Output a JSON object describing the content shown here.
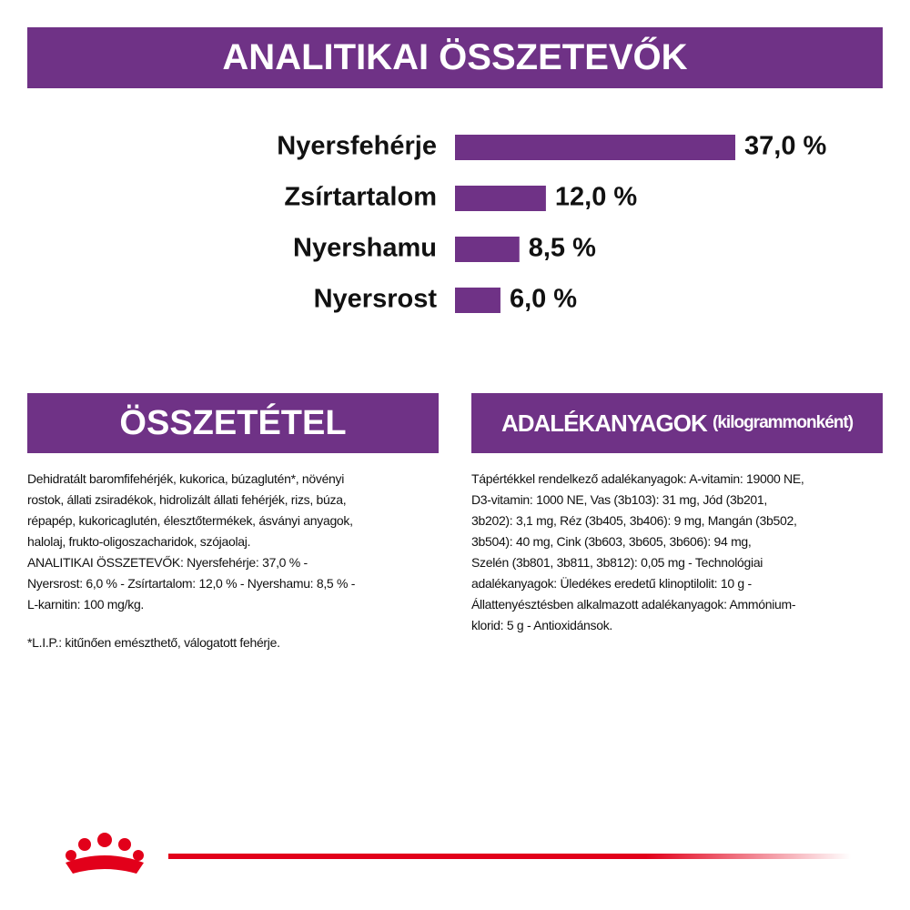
{
  "header": {
    "title": "ANALITIKAI ÖSSZETEVŐK"
  },
  "chart_data": {
    "type": "bar",
    "orientation": "horizontal",
    "color": "#6f3286",
    "categories": [
      "Nyersfehérje",
      "Zsírtartalom",
      "Nyershamu",
      "Nyersrost"
    ],
    "values": [
      37,
      12,
      8.5,
      6
    ],
    "value_labels": [
      "37,0 %",
      "12,0 %",
      "8,5 %",
      "6,0 %"
    ],
    "xlim": [
      0,
      40
    ]
  },
  "composition": {
    "title": "ÖSSZETÉTEL",
    "lines": [
      "Dehidratált baromfifehérjék, kukorica, búzaglutén*, növényi",
      "rostok, állati zsiradékok, hidrolizált állati fehérjék, rizs, búza,",
      "répapép, kukoricaglutén, élesztőtermékek, ásványi anyagok,",
      "halolaj, frukto-oligoszacharidok, szójaolaj.",
      "ANALITIKAI ÖSSZETEVŐK: Nyersfehérje: 37,0 % -",
      "Nyersrost: 6,0 % - Zsírtartalom: 12,0 % - Nyershamu: 8,5 % -",
      "L-karnitin: 100 mg/kg."
    ],
    "footnote": "*L.I.P.: kitűnően emészthető, válogatott fehérje."
  },
  "additives": {
    "title": "ADALÉKANYAGOK",
    "title_note": "(kilogrammonként)",
    "lines": [
      "Tápértékkel rendelkező adalékanyagok: A-vitamin: 19000 NE,",
      "D3-vitamin: 1000 NE, Vas (3b103): 31 mg, Jód (3b201,",
      "3b202): 3,1 mg, Réz (3b405, 3b406): 9 mg, Mangán (3b502,",
      "3b504): 40 mg, Cink (3b603, 3b605, 3b606): 94 mg,",
      "Szelén (3b801, 3b811, 3b812): 0,05 mg - Technológiai",
      "adalékanyagok: Üledékes eredetű klinoptilolit: 10 g -",
      "Állattenyésztésben alkalmazott adalékanyagok: Ammónium-",
      "klorid: 5 g - Antioxidánsok."
    ]
  }
}
